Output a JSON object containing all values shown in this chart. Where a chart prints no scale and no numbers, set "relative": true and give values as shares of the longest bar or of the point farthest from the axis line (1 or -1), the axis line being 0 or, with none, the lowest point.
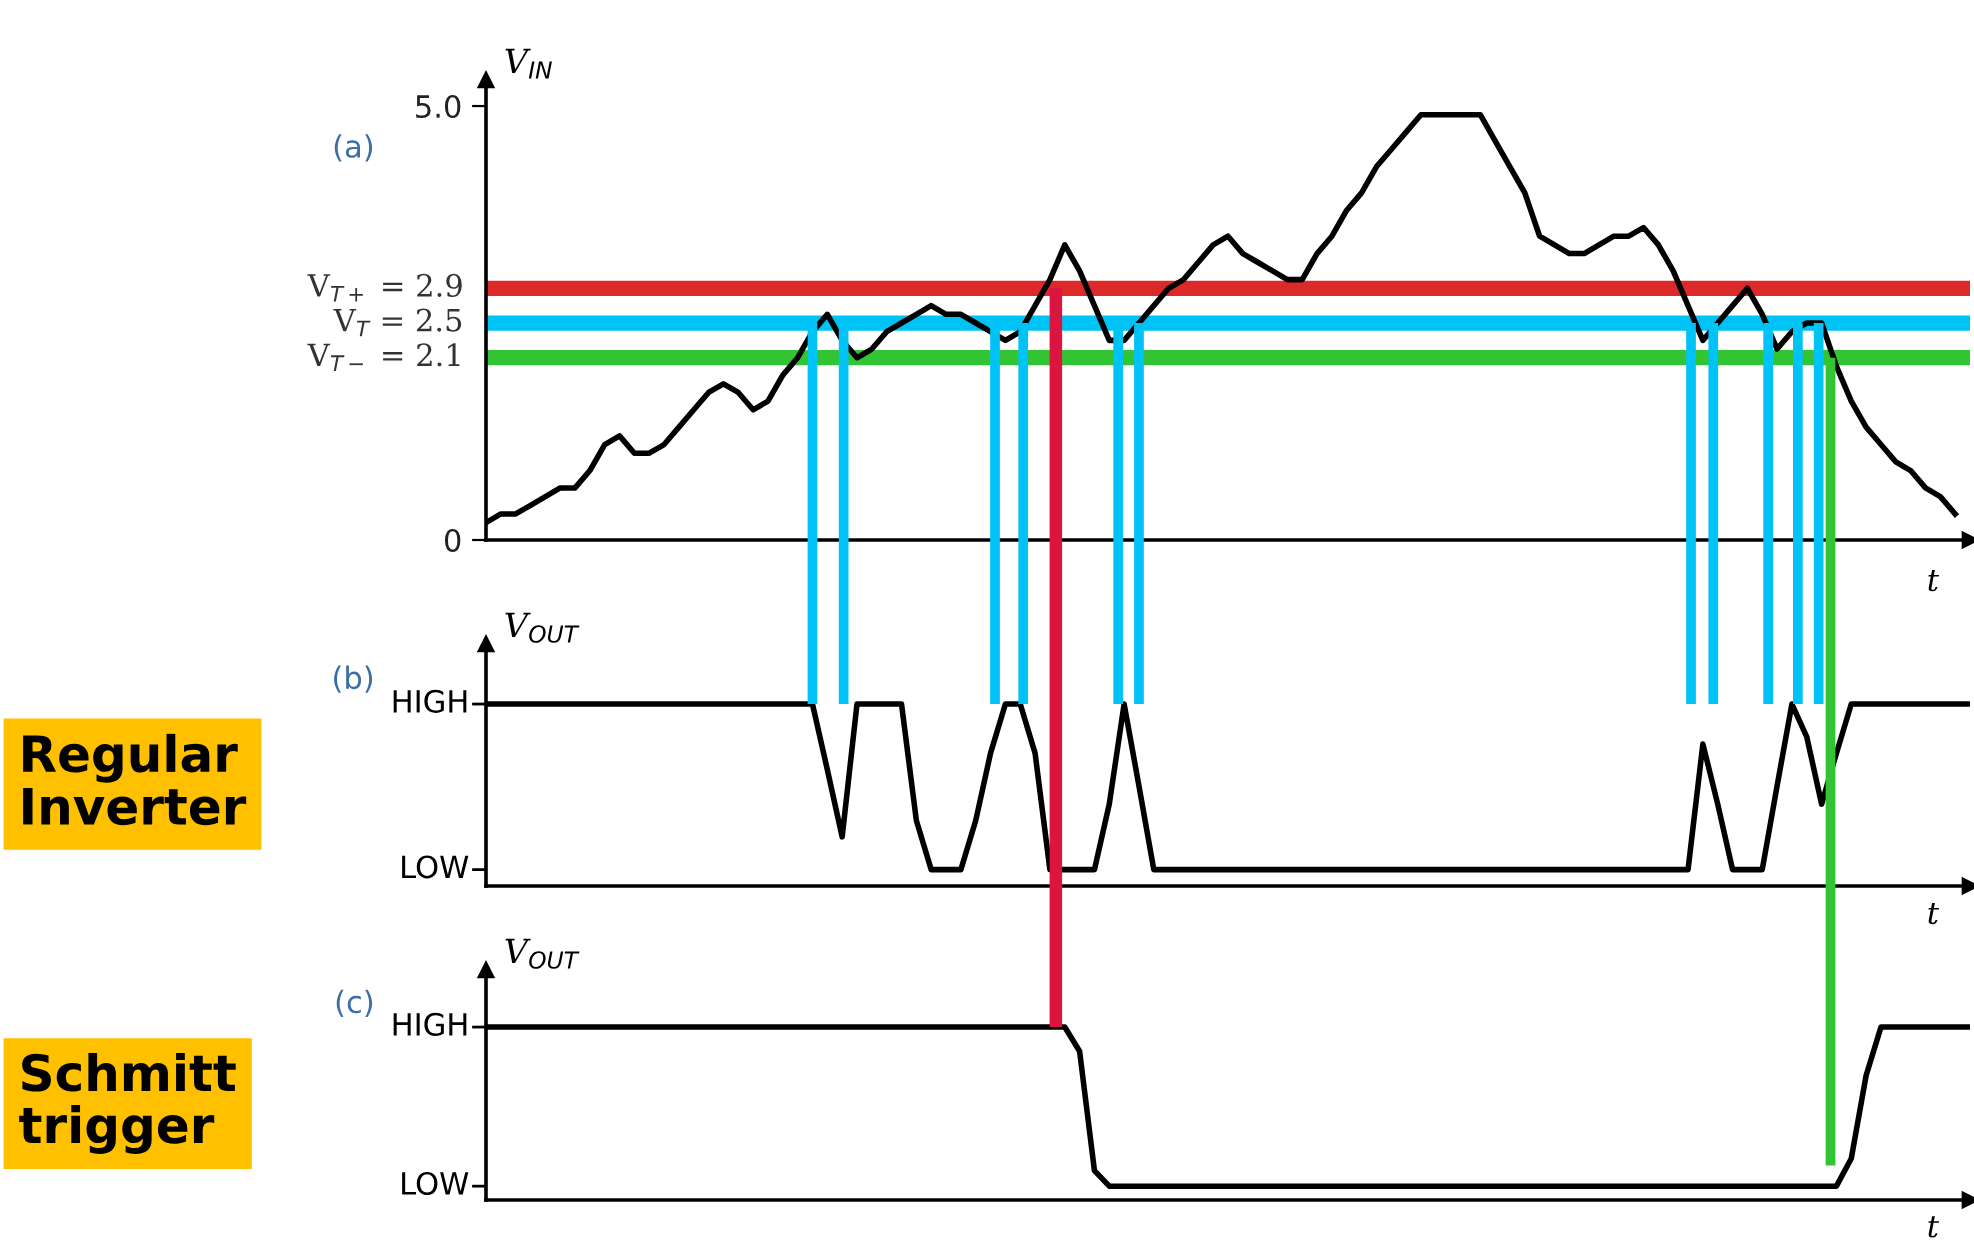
{
  "chart_data": [
    {
      "type": "line",
      "title": "(a)",
      "ylabel": "V$_{IN}$",
      "xlabel": "t",
      "tick_labels": "y",
      "grid": false,
      "legend": false,
      "categories": [
        null,
        null,
        null,
        null,
        null,
        null,
        null,
        null,
        null,
        null,
        null,
        null,
        null,
        null,
        null,
        null,
        null,
        null,
        null,
        null,
        null,
        null,
        null,
        null,
        null,
        null,
        null,
        null,
        null,
        null,
        null,
        null,
        null,
        null,
        null,
        null,
        null,
        null,
        null,
        null,
        null,
        null,
        null,
        null,
        null,
        null,
        null,
        null,
        null,
        null,
        null,
        null,
        null,
        null,
        null,
        null,
        null,
        null,
        null,
        null,
        null,
        null,
        null,
        null,
        null,
        null,
        null,
        null,
        null,
        null,
        null,
        null,
        null,
        null,
        null,
        null,
        null,
        null,
        null,
        null,
        null,
        null,
        null,
        null,
        null,
        null,
        null,
        null,
        null,
        null,
        null,
        null,
        null,
        null,
        null,
        null,
        null,
        null,
        null,
        null,
        null
      ],
      "ylim": [
        0,
        5.3
      ],
      "yticks": [
        0,
        {
          "value": 5.0,
          "label": "5.0"
        }
      ],
      "series": [
        {
          "color": "#000000",
          "values": [
            0.2,
            0.3,
            0.3,
            0.4,
            0.5,
            0.6,
            0.6,
            0.8,
            1.1,
            1.2,
            1.0,
            1.0,
            1.1,
            1.3,
            1.5,
            1.7,
            1.8,
            1.7,
            1.5,
            1.6,
            1.9,
            2.1,
            2.4,
            2.6,
            2.3,
            2.1,
            2.2,
            2.4,
            2.5,
            2.6,
            2.7,
            2.6,
            2.6,
            2.5,
            2.4,
            2.3,
            2.4,
            2.7,
            3.0,
            3.4,
            3.1,
            2.7,
            2.3,
            2.3,
            2.5,
            2.7,
            2.9,
            3.0,
            3.2,
            3.4,
            3.5,
            3.3,
            3.2,
            3.1,
            3.0,
            3.0,
            3.3,
            3.5,
            3.8,
            4.0,
            4.3,
            4.5,
            4.7,
            4.9,
            4.9,
            4.9,
            4.9,
            4.9,
            4.6,
            4.3,
            4.0,
            3.5,
            3.4,
            3.3,
            3.3,
            3.4,
            3.5,
            3.5,
            3.6,
            3.4,
            3.1,
            2.7,
            2.3,
            2.5,
            2.7,
            2.9,
            2.6,
            2.2,
            2.4,
            2.5,
            2.5,
            2.0,
            1.6,
            1.3,
            1.1,
            0.9,
            0.8,
            0.6,
            0.5,
            0.3,
            null
          ]
        }
      ],
      "ref_lines": [
        {
          "axis": "y",
          "value": 2.9,
          "label": "V$_{T+}$ = 2.9",
          "color": "#dc2a2a"
        },
        {
          "axis": "y",
          "value": 2.5,
          "label": "V$_{T}$ = 2.5",
          "color": "#00c3f5"
        },
        {
          "axis": "y",
          "value": 2.1,
          "label": "V$_{T−}$ = 2.1",
          "color": "#33c433"
        }
      ]
    },
    {
      "type": "line",
      "title": "(b)",
      "ylabel": "V$_{OUT}$",
      "xlabel": "t",
      "tick_labels": false,
      "grid": false,
      "legend": false,
      "relative": true,
      "categories": [
        null,
        null,
        null,
        null,
        null,
        null,
        null,
        null,
        null,
        null,
        null,
        null,
        null,
        null,
        null,
        null,
        null,
        null,
        null,
        null,
        null,
        null,
        null,
        null,
        null,
        null,
        null,
        null,
        null,
        null,
        null,
        null,
        null,
        null,
        null,
        null,
        null,
        null,
        null,
        null,
        null,
        null,
        null,
        null,
        null,
        null,
        null,
        null,
        null,
        null,
        null,
        null,
        null,
        null,
        null,
        null,
        null,
        null,
        null,
        null,
        null,
        null,
        null,
        null,
        null,
        null,
        null,
        null,
        null,
        null,
        null,
        null,
        null,
        null,
        null,
        null,
        null,
        null,
        null,
        null,
        null,
        null,
        null,
        null,
        null,
        null,
        null,
        null,
        null,
        null,
        null,
        null,
        null,
        null,
        null,
        null,
        null,
        null,
        null,
        null,
        null
      ],
      "annotations": [
        "Regular\nInverter",
        "HIGH",
        "LOW"
      ],
      "series": [
        {
          "color": "#000000",
          "values": [
            1,
            1,
            1,
            1,
            1,
            1,
            1,
            1,
            1,
            1,
            1,
            1,
            1,
            1,
            1,
            1,
            1,
            1,
            1,
            1,
            1,
            1,
            1,
            0.64,
            0.27,
            1,
            1,
            1,
            1,
            0.36,
            0.09,
            0.09,
            0.09,
            0.36,
            0.73,
            1,
            1,
            0.73,
            0.09,
            0.09,
            0.09,
            0.09,
            0.45,
            1,
            0.55,
            0.09,
            0.09,
            0.09,
            0.09,
            0.09,
            0.09,
            0.09,
            0.09,
            0.09,
            0.09,
            0.09,
            0.09,
            0.09,
            0.09,
            0.09,
            0.09,
            0.09,
            0.09,
            0.09,
            0.09,
            0.09,
            0.09,
            0.09,
            0.09,
            0.09,
            0.09,
            0.09,
            0.09,
            0.09,
            0.09,
            0.09,
            0.09,
            0.09,
            0.09,
            0.09,
            0.09,
            0.09,
            0.78,
            0.45,
            0.09,
            0.09,
            0.09,
            0.55,
            1,
            0.82,
            0.45,
            0.73,
            1,
            1,
            1,
            1,
            1,
            1,
            1,
            1,
            1
          ]
        }
      ]
    },
    {
      "type": "line",
      "title": "(c)",
      "ylabel": "V$_{OUT}$",
      "xlabel": "t",
      "tick_labels": false,
      "grid": false,
      "legend": false,
      "relative": true,
      "categories": [
        null,
        null,
        null,
        null,
        null,
        null,
        null,
        null,
        null,
        null,
        null,
        null,
        null,
        null,
        null,
        null,
        null,
        null,
        null,
        null,
        null,
        null,
        null,
        null,
        null,
        null,
        null,
        null,
        null,
        null,
        null,
        null,
        null,
        null,
        null,
        null,
        null,
        null,
        null,
        null,
        null,
        null,
        null,
        null,
        null,
        null,
        null,
        null,
        null,
        null,
        null,
        null,
        null,
        null,
        null,
        null,
        null,
        null,
        null,
        null,
        null,
        null,
        null,
        null,
        null,
        null,
        null,
        null,
        null,
        null,
        null,
        null,
        null,
        null,
        null,
        null,
        null,
        null,
        null,
        null,
        null,
        null,
        null,
        null,
        null,
        null,
        null,
        null,
        null,
        null,
        null,
        null,
        null,
        null,
        null,
        null,
        null,
        null,
        null,
        null,
        null
      ],
      "annotations": [
        "Schmitt\ntrigger",
        "HIGH",
        "LOW"
      ],
      "series": [
        {
          "color": "#000000",
          "values": [
            1,
            1,
            1,
            1,
            1,
            1,
            1,
            1,
            1,
            1,
            1,
            1,
            1,
            1,
            1,
            1,
            1,
            1,
            1,
            1,
            1,
            1,
            1,
            1,
            1,
            1,
            1,
            1,
            1,
            1,
            1,
            1,
            1,
            1,
            1,
            1,
            1,
            1,
            1,
            1,
            0.86,
            0.17,
            0.08,
            0.08,
            0.08,
            0.08,
            0.08,
            0.08,
            0.08,
            0.08,
            0.08,
            0.08,
            0.08,
            0.08,
            0.08,
            0.08,
            0.08,
            0.08,
            0.08,
            0.08,
            0.08,
            0.08,
            0.08,
            0.08,
            0.08,
            0.08,
            0.08,
            0.08,
            0.08,
            0.08,
            0.08,
            0.08,
            0.08,
            0.08,
            0.08,
            0.08,
            0.08,
            0.08,
            0.08,
            0.08,
            0.08,
            0.08,
            0.08,
            0.08,
            0.08,
            0.08,
            0.08,
            0.08,
            0.08,
            0.08,
            0.08,
            0.08,
            0.24,
            0.72,
            1,
            1,
            1,
            1,
            1,
            1,
            1
          ]
        }
      ]
    }
  ]
}
